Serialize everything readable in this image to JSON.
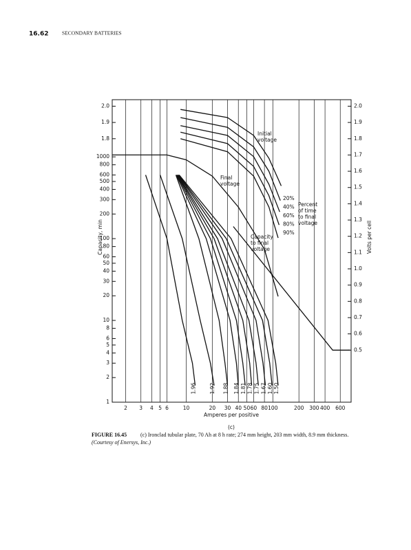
{
  "header": {
    "page": "16.62",
    "section": "SECONDARY BATTERIES"
  },
  "chart_data": {
    "type": "line",
    "x_label": "Amperes per positive",
    "y_label": "Capacity, min",
    "y2_label": "Volts per cell",
    "log_x": true,
    "log_y": true,
    "grid": true,
    "color": "#111111",
    "xlim": [
      1.4,
      800
    ],
    "xticks": [
      2,
      3,
      4,
      5,
      6,
      10,
      20,
      30,
      40,
      50,
      60,
      80,
      100,
      200,
      300,
      400,
      600
    ],
    "ylim": [
      1,
      5000
    ],
    "yticks": [
      1,
      2,
      3,
      4,
      5,
      6,
      8,
      10,
      20,
      30,
      40,
      50,
      60,
      80,
      100,
      200,
      300,
      400,
      500,
      600,
      800,
      1000
    ],
    "y2lim": [
      0.18,
      2.04
    ],
    "y2ticks": [
      0.5,
      0.6,
      0.7,
      0.8,
      0.9,
      {
        "value": 1,
        "label": "1.0"
      },
      1.1,
      1.2,
      1.3,
      1.4,
      1.5,
      1.6,
      1.7,
      1.8,
      1.9,
      {
        "value": 2,
        "label": "2.0"
      }
    ],
    "left_volt_ticks": [
      {
        "value": 2,
        "label": "2.0"
      },
      1.9,
      1.8
    ],
    "series": [
      {
        "name": "1.96",
        "axis": "y",
        "x": [
          3.4,
          6,
          9,
          11.8,
          12.7
        ],
        "values": [
          600,
          100,
          10,
          3,
          1.6
        ]
      },
      {
        "name": "1.92",
        "axis": "y",
        "x": [
          5,
          9,
          14.5,
          19,
          21
        ],
        "values": [
          600,
          100,
          10,
          3,
          1.6
        ]
      },
      {
        "name": "1.88",
        "axis": "y",
        "x": [
          7.6,
          14,
          24,
          28,
          30
        ],
        "values": [
          600,
          100,
          10,
          3,
          1.6
        ]
      },
      {
        "name": "1.84",
        "axis": "y",
        "x": [
          7.7,
          17,
          32,
          38,
          40
        ],
        "values": [
          600,
          100,
          10,
          3,
          1.6
        ]
      },
      {
        "name": "1.81",
        "axis": "y",
        "x": [
          7.8,
          19,
          38,
          45,
          48
        ],
        "values": [
          600,
          100,
          10,
          3,
          1.6
        ]
      },
      {
        "name": "1.78",
        "axis": "y",
        "x": [
          7.9,
          21,
          45,
          54,
          57
        ],
        "values": [
          600,
          100,
          10,
          3,
          1.6
        ]
      },
      {
        "name": "1.75",
        "axis": "y",
        "x": [
          8,
          23,
          53,
          64,
          68
        ],
        "values": [
          600,
          100,
          10,
          3,
          1.6
        ]
      },
      {
        "name": "1.67",
        "axis": "y",
        "x": [
          8.1,
          26,
          64,
          77,
          82
        ],
        "values": [
          600,
          100,
          10,
          3,
          1.6
        ]
      },
      {
        "name": "1.60",
        "axis": "y",
        "x": [
          8.2,
          29,
          76,
          92,
          98
        ],
        "values": [
          600,
          100,
          10,
          3,
          1.6
        ]
      },
      {
        "name": "1.50",
        "axis": "y",
        "x": [
          8.3,
          33,
          88,
          108,
          115
        ],
        "values": [
          600,
          100,
          10,
          3,
          1.6
        ]
      },
      {
        "name": "20%",
        "axis": "y2",
        "x": [
          8.6,
          30,
          60,
          90,
          125
        ],
        "values": [
          1.98,
          1.93,
          1.82,
          1.68,
          1.51
        ]
      },
      {
        "name": "40%",
        "axis": "y2",
        "x": [
          8.6,
          30,
          60,
          90,
          122
        ],
        "values": [
          1.93,
          1.87,
          1.75,
          1.6,
          1.42
        ]
      },
      {
        "name": "60%",
        "axis": "y2",
        "x": [
          8.6,
          30,
          60,
          90,
          120
        ],
        "values": [
          1.88,
          1.82,
          1.69,
          1.52,
          1.35
        ]
      },
      {
        "name": "80%",
        "axis": "y2",
        "x": [
          8.6,
          30,
          60,
          90,
          118
        ],
        "values": [
          1.84,
          1.77,
          1.63,
          1.45,
          1.27
        ]
      },
      {
        "name": "90%",
        "axis": "y2",
        "x": [
          8.6,
          30,
          60,
          90,
          115
        ],
        "values": [
          1.8,
          1.72,
          1.57,
          1.38,
          1.19
        ]
      },
      {
        "axis": "y2",
        "x": [
          1.4,
          6,
          10,
          20,
          40,
          80,
          115
        ],
        "values": [
          1.7,
          1.7,
          1.67,
          1.57,
          1.38,
          1.12,
          0.83
        ]
      },
      {
        "axis": "y2",
        "x": [
          35,
          490,
          780
        ],
        "values": [
          1.26,
          0.5,
          0.5
        ]
      }
    ],
    "annotations": [
      {
        "lines": [
          "Initial",
          "voltage"
        ]
      },
      {
        "lines": [
          "Final",
          "voltage"
        ]
      },
      {
        "lines": [
          "Capacity",
          "to final",
          "voltage"
        ]
      },
      {
        "lines": [
          "Percent",
          "of time",
          "to final",
          "voltage"
        ]
      },
      {
        "lines": [
          "(c)"
        ]
      }
    ]
  },
  "caption": {
    "label": "FIGURE 16.45",
    "text": "(c) Ironclad tubular plate, 70 Ah at 8 h rate; 274 mm height, 203 mm width, 8.9 mm thickness.",
    "credit": "(Courtesy of Enersys, Inc.)"
  }
}
